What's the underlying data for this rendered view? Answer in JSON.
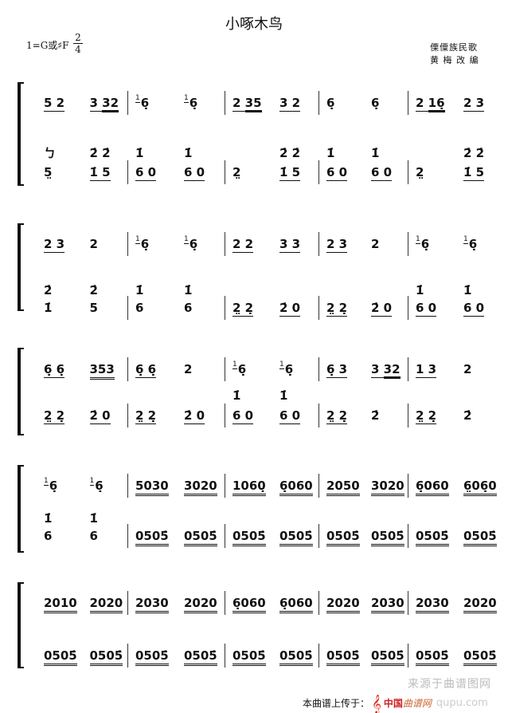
{
  "header": {
    "title": "小啄木鸟",
    "key": "1=G或♯F",
    "time_top": "2",
    "time_bottom": "4",
    "origin": "傈僳族民歌",
    "arranger": "黄 梅 改 编"
  },
  "systems": [
    {
      "upper": [
        [
          {
            "t": "5 2",
            "u": 1
          },
          {
            "u": 1,
            "segs": [
              {
                "t": "3 "
              },
              {
                "t": "32",
                "u": 2
              }
            ]
          }
        ],
        [
          {
            "g": "1",
            "t": "6̣"
          },
          {
            "g": "1",
            "t": "6̣"
          }
        ],
        [
          {
            "u": 1,
            "segs": [
              {
                "t": "2 "
              },
              {
                "t": "35",
                "u": 2
              }
            ]
          },
          {
            "t": "3 2",
            "u": 1
          }
        ],
        [
          {
            "t": "6̣"
          },
          {
            "t": "6̣"
          }
        ],
        [
          {
            "u": 1,
            "segs": [
              {
                "t": "2 "
              },
              {
                "t": "16̣",
                "u": 2
              }
            ]
          },
          {
            "t": "2 3",
            "u": 1
          }
        ]
      ],
      "chord": [
        [
          {
            "t": "ㄅ"
          },
          {
            "t": "2̇ 2̇"
          }
        ],
        [
          {
            "t": "1̇"
          },
          {
            "t": "1̇"
          }
        ],
        [
          {
            "t": ""
          },
          {
            "t": "2̇ 2̇"
          }
        ],
        [
          {
            "t": "1̇"
          },
          {
            "t": "1̇"
          }
        ],
        [
          {
            "t": ""
          },
          {
            "t": "2̇ 2̇"
          }
        ]
      ],
      "lower": [
        [
          {
            "t": "5̤"
          },
          {
            "t": "1̇ 5",
            "u": 1
          }
        ],
        [
          {
            "t": "6 0",
            "u": 1
          },
          {
            "t": "6 0",
            "u": 1
          }
        ],
        [
          {
            "t": "2̤"
          },
          {
            "t": "1̇ 5",
            "u": 1
          }
        ],
        [
          {
            "t": "6 0",
            "u": 1
          },
          {
            "t": "6 0",
            "u": 1
          }
        ],
        [
          {
            "t": "2̤"
          },
          {
            "t": "1̇ 5",
            "u": 1
          }
        ]
      ]
    },
    {
      "upper": [
        [
          {
            "t": "2 3",
            "u": 1
          },
          {
            "t": "2"
          }
        ],
        [
          {
            "g": "1",
            "t": "6̣"
          },
          {
            "g": "1",
            "t": "6̣"
          }
        ],
        [
          {
            "t": "2 2",
            "u": 1
          },
          {
            "t": "3 3",
            "u": 1
          }
        ],
        [
          {
            "t": "2 3",
            "u": 1
          },
          {
            "t": "2"
          }
        ],
        [
          {
            "g": "1",
            "t": "6̣"
          },
          {
            "g": "1",
            "t": "6̣"
          }
        ]
      ],
      "chord": [
        [
          {
            "t": "2̇"
          },
          {
            "t": "2̇"
          }
        ],
        [
          {
            "t": "1̇"
          },
          {
            "t": "1̇"
          }
        ],
        [
          {
            "t": ""
          },
          {
            "t": ""
          }
        ],
        [
          {
            "t": ""
          },
          {
            "t": ""
          }
        ],
        [
          {
            "t": "1̇"
          },
          {
            "t": "1̇"
          }
        ]
      ],
      "lower": [
        [
          {
            "t": "1̇"
          },
          {
            "t": "5"
          }
        ],
        [
          {
            "t": "6"
          },
          {
            "t": "6"
          }
        ],
        [
          {
            "t": "2̤ 2̣",
            "u": 1
          },
          {
            "t": "2̇ 0",
            "u": 1
          }
        ],
        [
          {
            "t": "2̤ 2̣",
            "u": 1
          },
          {
            "t": "2̇ 0",
            "u": 1
          }
        ],
        [
          {
            "t": "6 0",
            "u": 1
          },
          {
            "t": "6 0",
            "u": 1
          }
        ]
      ]
    },
    {
      "upper": [
        [
          {
            "t": "6̣ 6̣",
            "u": 1
          },
          {
            "t": "353",
            "u": 2
          }
        ],
        [
          {
            "t": "6̣ 6̣",
            "u": 1
          },
          {
            "t": "2"
          }
        ],
        [
          {
            "g": "1",
            "t": "6̣"
          },
          {
            "g": "1",
            "t": "6̣"
          }
        ],
        [
          {
            "t": "6̣ 3",
            "u": 1
          },
          {
            "u": 1,
            "segs": [
              {
                "t": "3 "
              },
              {
                "t": "32",
                "u": 2
              }
            ]
          }
        ],
        [
          {
            "t": "1 3",
            "u": 1
          },
          {
            "t": "2"
          }
        ]
      ],
      "chord": [
        [
          {
            "t": ""
          },
          {
            "t": ""
          }
        ],
        [
          {
            "t": ""
          },
          {
            "t": ""
          }
        ],
        [
          {
            "t": "1̇"
          },
          {
            "t": "1̇"
          }
        ],
        [
          {
            "t": ""
          },
          {
            "t": ""
          }
        ],
        [
          {
            "t": ""
          },
          {
            "t": ""
          }
        ]
      ],
      "lower": [
        [
          {
            "t": "2̤ 2̣",
            "u": 1
          },
          {
            "t": "2̇ 0",
            "u": 1
          }
        ],
        [
          {
            "t": "2̤ 2̣",
            "u": 1
          },
          {
            "t": "2̇ 0",
            "u": 1
          }
        ],
        [
          {
            "t": "6 0",
            "u": 1
          },
          {
            "t": "6 0",
            "u": 1
          }
        ],
        [
          {
            "t": "2̤ 2̣",
            "u": 1
          },
          {
            "t": "2̇"
          }
        ],
        [
          {
            "t": "2̤ 2̣",
            "u": 1
          },
          {
            "t": "2̇"
          }
        ]
      ]
    },
    {
      "upper": [
        [
          {
            "g": "1",
            "t": "6̣"
          },
          {
            "g": "1",
            "t": "6̣"
          }
        ],
        [
          {
            "t": "5030",
            "u": 2
          },
          {
            "t": "3020",
            "u": 2
          }
        ],
        [
          {
            "t": "1060̣",
            "u": 2
          },
          {
            "t": "6̣060",
            "u": 2
          }
        ],
        [
          {
            "t": "2050",
            "u": 2
          },
          {
            "t": "3020",
            "u": 2
          }
        ],
        [
          {
            "t": "6̣060",
            "u": 2
          },
          {
            "t": "6̤06̣0",
            "u": 2
          }
        ]
      ],
      "chord": [
        [
          {
            "t": "1̇"
          },
          {
            "t": "1̇"
          }
        ],
        [
          {
            "t": ""
          },
          {
            "t": ""
          }
        ],
        [
          {
            "t": ""
          },
          {
            "t": ""
          }
        ],
        [
          {
            "t": ""
          },
          {
            "t": ""
          }
        ],
        [
          {
            "t": ""
          },
          {
            "t": ""
          }
        ]
      ],
      "lower": [
        [
          {
            "t": "6"
          },
          {
            "t": "6"
          }
        ],
        [
          {
            "t": "0505̇",
            "u": 2
          },
          {
            "t": "0505̇",
            "u": 2
          }
        ],
        [
          {
            "t": "0505̇",
            "u": 2
          },
          {
            "t": "0505̇",
            "u": 2
          }
        ],
        [
          {
            "t": "0505̇",
            "u": 2
          },
          {
            "t": "0505̇",
            "u": 2
          }
        ],
        [
          {
            "t": "0505̇",
            "u": 2
          },
          {
            "t": "0505̇",
            "u": 2
          }
        ]
      ]
    },
    {
      "upper": [
        [
          {
            "t": "2010",
            "u": 2
          },
          {
            "t": "2020",
            "u": 2
          }
        ],
        [
          {
            "t": "2030",
            "u": 2
          },
          {
            "t": "2020",
            "u": 2
          }
        ],
        [
          {
            "t": "6̣060",
            "u": 2
          },
          {
            "t": "6̣060",
            "u": 2
          }
        ],
        [
          {
            "t": "2020",
            "u": 2
          },
          {
            "t": "2030",
            "u": 2
          }
        ],
        [
          {
            "t": "2030",
            "u": 2
          },
          {
            "t": "2020",
            "u": 2
          }
        ]
      ],
      "lower": [
        [
          {
            "t": "0505̇",
            "u": 2
          },
          {
            "t": "0505̇",
            "u": 2
          }
        ],
        [
          {
            "t": "0505̇",
            "u": 2
          },
          {
            "t": "0505̇",
            "u": 2
          }
        ],
        [
          {
            "t": "0505̇",
            "u": 2
          },
          {
            "t": "0505̇",
            "u": 2
          }
        ],
        [
          {
            "t": "0505̇",
            "u": 2
          },
          {
            "t": "0505̇",
            "u": 2
          }
        ],
        [
          {
            "t": "0505̇",
            "u": 2
          },
          {
            "t": "0505̇",
            "u": 2
          }
        ]
      ]
    }
  ],
  "footer": {
    "upload_text": "本曲谱上传于：",
    "site_name": "中国",
    "site_name2": "曲谱网",
    "watermark": "来源于曲谱图网",
    "watermark_url": "qupu.com",
    "clef_icon": "treble-clef-icon",
    "brand_color": "#cc2222"
  }
}
